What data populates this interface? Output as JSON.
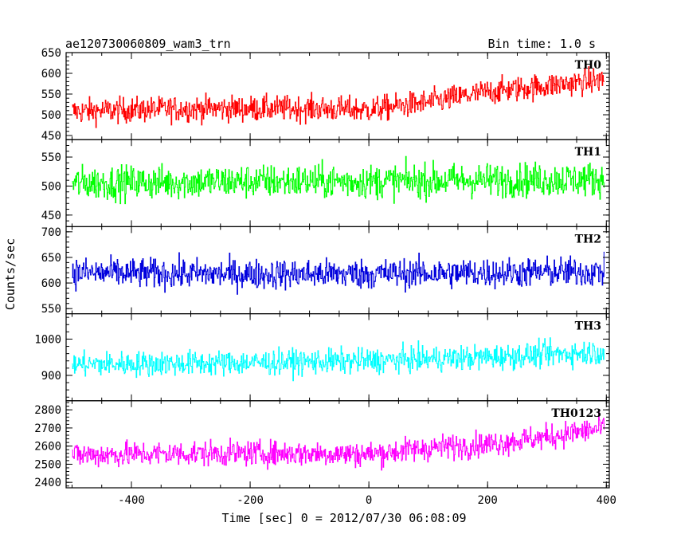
{
  "chart_data": {
    "type": "line",
    "title": "ae120730060809_wam3_trn",
    "bin_time_label": "Bin time: 1.0 s",
    "xlabel": "Time [sec] 0 = 2012/07/30 06:08:09",
    "ylabel": "Counts/sec",
    "xlim": [
      -510,
      405
    ],
    "x_range": [
      -500,
      396
    ],
    "xticks": [
      -400,
      -200,
      0,
      200,
      400
    ],
    "panels": [
      {
        "name": "TH0",
        "color": "#ff0000",
        "ylim": [
          440,
          650
        ],
        "yticks": [
          450,
          500,
          550,
          600,
          650
        ],
        "trend": [
          [
            -500,
            508
          ],
          [
            -300,
            515
          ],
          [
            -100,
            515
          ],
          [
            0,
            512
          ],
          [
            100,
            530
          ],
          [
            200,
            555
          ],
          [
            300,
            570
          ],
          [
            396,
            585
          ]
        ],
        "noise": 40
      },
      {
        "name": "TH1",
        "color": "#00ff00",
        "ylim": [
          430,
          580
        ],
        "yticks": [
          450,
          500,
          550
        ],
        "trend": [
          [
            -500,
            505
          ],
          [
            -200,
            508
          ],
          [
            0,
            508
          ],
          [
            200,
            510
          ],
          [
            396,
            512
          ]
        ],
        "noise": 38
      },
      {
        "name": "TH2",
        "color": "#0000dd",
        "ylim": [
          540,
          710
        ],
        "yticks": [
          550,
          600,
          650,
          700
        ],
        "trend": [
          [
            -500,
            620
          ],
          [
            -200,
            617
          ],
          [
            0,
            618
          ],
          [
            200,
            620
          ],
          [
            396,
            622
          ]
        ],
        "noise": 38
      },
      {
        "name": "TH3",
        "color": "#00ffff",
        "ylim": [
          830,
          1070
        ],
        "yticks": [
          900,
          1000
        ],
        "trend": [
          [
            -500,
            930
          ],
          [
            -200,
            935
          ],
          [
            0,
            940
          ],
          [
            200,
            950
          ],
          [
            396,
            965
          ]
        ],
        "noise": 45
      },
      {
        "name": "TH0123",
        "color": "#ff00ff",
        "ylim": [
          2370,
          2850
        ],
        "yticks": [
          2400,
          2500,
          2600,
          2700,
          2800
        ],
        "trend": [
          [
            -500,
            2550
          ],
          [
            -300,
            2560
          ],
          [
            -100,
            2560
          ],
          [
            0,
            2555
          ],
          [
            100,
            2590
          ],
          [
            200,
            2610
          ],
          [
            300,
            2650
          ],
          [
            396,
            2700
          ]
        ],
        "noise": 90
      }
    ],
    "grid": false,
    "legend": "none"
  }
}
